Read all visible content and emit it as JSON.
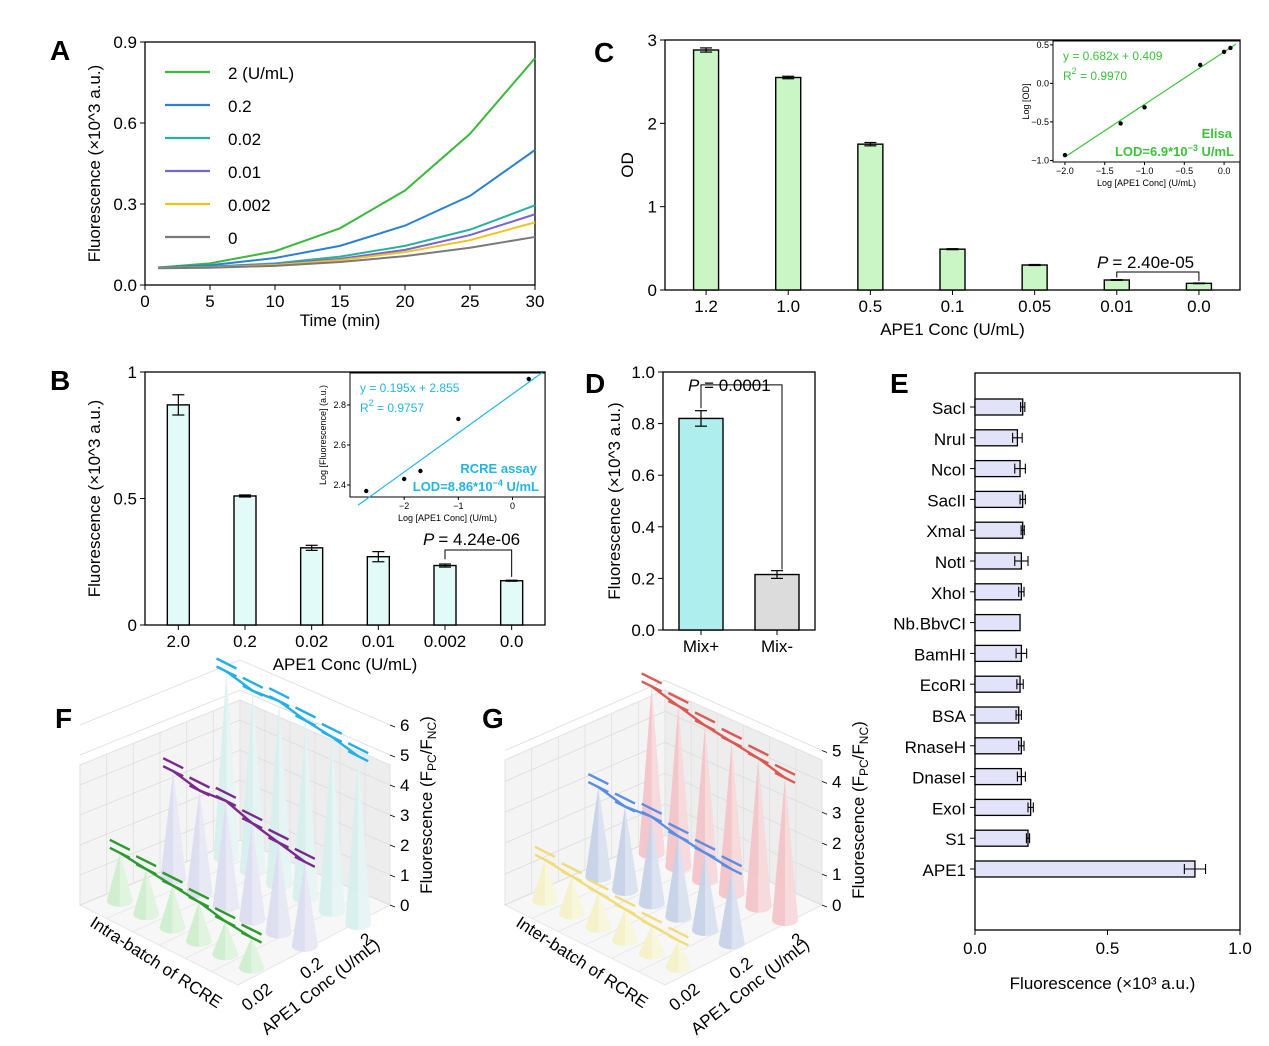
{
  "panels": {
    "A": "A",
    "B": "B",
    "C": "C",
    "D": "D",
    "E": "E",
    "F": "F",
    "G": "G"
  },
  "chart_data": [
    {
      "id": "A",
      "type": "line",
      "xlabel": "Time (min)",
      "ylabel": "Fluorescence (×10^3 a.u.)",
      "xlim": [
        0,
        30
      ],
      "ylim": [
        0,
        0.9
      ],
      "xticks": [
        "0",
        "5",
        "10",
        "15",
        "20",
        "25",
        "30"
      ],
      "yticks": [
        "0.0",
        "0.3",
        "0.6",
        "0.9"
      ],
      "legend_position": "top-left",
      "x": [
        1,
        5,
        10,
        15,
        20,
        25,
        30
      ],
      "series": [
        {
          "name": "2 (U/mL)",
          "color": "#3cb83c",
          "values": [
            0.065,
            0.08,
            0.125,
            0.21,
            0.35,
            0.56,
            0.84
          ]
        },
        {
          "name": "0.2",
          "color": "#2a7fd6",
          "values": [
            0.065,
            0.073,
            0.1,
            0.145,
            0.22,
            0.33,
            0.5
          ]
        },
        {
          "name": "0.02",
          "color": "#2ab0a2",
          "values": [
            0.063,
            0.068,
            0.08,
            0.105,
            0.145,
            0.205,
            0.295
          ]
        },
        {
          "name": "0.01",
          "color": "#7a65d0",
          "values": [
            0.063,
            0.066,
            0.077,
            0.097,
            0.13,
            0.185,
            0.262
          ]
        },
        {
          "name": "0.002",
          "color": "#f0c21e",
          "values": [
            0.063,
            0.065,
            0.074,
            0.092,
            0.122,
            0.166,
            0.232
          ]
        },
        {
          "name": "0",
          "color": "#7a7a7a",
          "values": [
            0.062,
            0.064,
            0.071,
            0.085,
            0.107,
            0.138,
            0.178
          ]
        }
      ]
    },
    {
      "id": "B",
      "type": "bar",
      "xlabel": "APE1 Conc (U/mL)",
      "ylabel": "Fluorescence (×10^3 a.u.)",
      "categories": [
        "2.0",
        "0.2",
        "0.02",
        "0.01",
        "0.002",
        "0.0"
      ],
      "values": [
        0.87,
        0.51,
        0.305,
        0.27,
        0.235,
        0.175
      ],
      "errors": [
        0.04,
        0.004,
        0.01,
        0.02,
        0.006,
        0.002
      ],
      "ylim": [
        0,
        1
      ],
      "yticks": [
        "0",
        "0.5",
        "1"
      ],
      "bar_color": "#e3fbf8",
      "annotation": {
        "p_label": "P",
        "p_value": "= 4.24e-06",
        "between": [
          "0.002",
          "0.0"
        ]
      },
      "inset": {
        "xlabel": "Log [APE1 Conc] (U/mL)",
        "ylabel": "Log [Fluorescence] (a.u.)",
        "xlim": [
          -3,
          0.6
        ],
        "ylim": [
          2.34,
          2.96
        ],
        "xticks": [
          "−2",
          "−1",
          "0"
        ],
        "yticks": [
          "2.4",
          "2.6",
          "2.8"
        ],
        "x": [
          -2.7,
          -2.0,
          -1.7,
          -1.0,
          0.3
        ],
        "y": [
          2.37,
          2.43,
          2.47,
          2.73,
          2.93
        ],
        "fit": {
          "slope": 0.195,
          "intercept": 2.855
        },
        "equation": "y = 0.195x + 2.855",
        "r2_prefix": "R",
        "r2_value": " = 0.9757",
        "assay": "RCRE assay",
        "lod_prefix": "LOD=8.86*10",
        "lod_exp": "−4",
        "lod_unit": " U/mL",
        "color": "#22b5e6"
      }
    },
    {
      "id": "C",
      "type": "bar",
      "xlabel": "APE1 Conc (U/mL)",
      "ylabel": "OD",
      "categories": [
        "1.2",
        "1.0",
        "0.5",
        "0.1",
        "0.05",
        "0.01",
        "0.0"
      ],
      "values": [
        2.88,
        2.55,
        1.75,
        0.49,
        0.3,
        0.12,
        0.08
      ],
      "errors": [
        0.025,
        0.015,
        0.02,
        0.006,
        0.006,
        0.004,
        0.004
      ],
      "ylim": [
        0,
        3
      ],
      "yticks": [
        "0",
        "1",
        "2",
        "3"
      ],
      "bar_color": "#c9f6c4",
      "annotation": {
        "p_label": "P",
        "p_value": "= 2.40e-05",
        "between": [
          "0.01",
          "0.0"
        ]
      },
      "inset": {
        "xlabel": "Log [APE1 Conc] (U/mL)",
        "ylabel": "Log [OD]",
        "xlim": [
          -2.15,
          0.2
        ],
        "ylim": [
          -1.02,
          0.55
        ],
        "xticks": [
          "−2.0",
          "−1.5",
          "−1.0",
          "−0.5",
          "0.0"
        ],
        "yticks": [
          "−1.0",
          "−0.5",
          "0.0",
          "0.5"
        ],
        "x": [
          -2.0,
          -1.3,
          -1.0,
          -0.3,
          0.0,
          0.08
        ],
        "y": [
          -0.93,
          -0.52,
          -0.31,
          0.24,
          0.41,
          0.46
        ],
        "fit": {
          "slope": 0.682,
          "intercept": 0.409
        },
        "equation": "y = 0.682x + 0.409",
        "r2_prefix": "R",
        "r2_value": " = 0.9970",
        "assay": "Elisa",
        "lod_prefix": "LOD=6.9*10",
        "lod_exp": "−3",
        "lod_unit": " U/mL",
        "color": "#3cc23c"
      }
    },
    {
      "id": "D",
      "type": "bar",
      "ylabel": "Fluorescence (×10^3 a.u.)",
      "categories": [
        "Mix+",
        "Mix-"
      ],
      "values": [
        0.82,
        0.215
      ],
      "errors": [
        0.03,
        0.015
      ],
      "colors": [
        "#aeeeed",
        "#dcdcdc"
      ],
      "ylim": [
        0,
        1.0
      ],
      "yticks": [
        "0.0",
        "0.2",
        "0.4",
        "0.6",
        "0.8",
        "1.0"
      ],
      "annotation": {
        "p_label": "P",
        "p_value": " = 0.0001"
      }
    },
    {
      "id": "E",
      "type": "bar",
      "orientation": "horizontal",
      "xlabel": "Fluorescence (×10³ a.u.)",
      "categories": [
        "SacI",
        "NruI",
        "NcoI",
        "SacII",
        "XmaI",
        "NotI",
        "XhoI",
        "Nb.BbvCI",
        "BamHI",
        "EcoRI",
        "BSA",
        "RnaseH",
        "DnaseI",
        "ExoI",
        "S1",
        "APE1"
      ],
      "values": [
        0.18,
        0.16,
        0.17,
        0.18,
        0.18,
        0.175,
        0.175,
        0.17,
        0.175,
        0.17,
        0.165,
        0.175,
        0.175,
        0.21,
        0.2,
        0.83
      ],
      "errors": [
        0.008,
        0.018,
        0.02,
        0.01,
        0.006,
        0.025,
        0.01,
        0.0,
        0.02,
        0.012,
        0.01,
        0.01,
        0.015,
        0.01,
        0.006,
        0.04
      ],
      "xlim": [
        0,
        1.0
      ],
      "xticks": [
        "0.0",
        "0.5",
        "1.0"
      ],
      "bar_color": "#e2e2f8"
    },
    {
      "id": "F",
      "type": "3d-cone",
      "zlabel_main": "Fluorescence (F",
      "zlabel_sub1": "PC",
      "zlabel_mid": "/F",
      "zlabel_sub2": "NC",
      "zlabel_end": ")",
      "xlabel": "APE1 Conc (U/mL)",
      "ylabel": "Intra-batch of RCRE",
      "xticks": [
        "0.02",
        "0.2",
        "2"
      ],
      "zticks": [
        "0",
        "1",
        "2",
        "3",
        "4",
        "5",
        "6"
      ],
      "zmax": 6,
      "rows": [
        {
          "color": "#2c9a2c",
          "fill": "#cfeecd",
          "values": [
            1.6,
            1.5,
            1.4,
            1.3,
            1.1,
            1.0
          ]
        },
        {
          "color": "#7b2a8c",
          "fill": "#dcdcf0",
          "values": [
            3.6,
            3.4,
            3.5,
            3.2,
            3.0,
            2.8
          ]
        },
        {
          "color": "#22b0e6",
          "fill": "#d8efee",
          "values": [
            6.2,
            6.0,
            6.1,
            5.9,
            5.8,
            5.6
          ]
        }
      ]
    },
    {
      "id": "G",
      "type": "3d-cone",
      "zlabel_main": "Fluorescence (F",
      "zlabel_sub1": "PC",
      "zlabel_mid": "/F",
      "zlabel_sub2": "NC",
      "zlabel_end": ")",
      "xlabel": "APE1 Conc (U/mL)",
      "ylabel": "Inter-batch of RCRE",
      "xticks": [
        "0.02",
        "0.2",
        "2"
      ],
      "zticks": [
        "0",
        "1",
        "2",
        "3",
        "4",
        "5"
      ],
      "zmax": 5.5,
      "rows": [
        {
          "color": "#f0dc78",
          "fill": "#f3f0c8",
          "values": [
            1.3,
            1.2,
            1.1,
            1.0,
            0.9,
            0.85
          ]
        },
        {
          "color": "#5a8ee6",
          "fill": "#c6d2e8",
          "values": [
            2.9,
            2.7,
            2.8,
            2.6,
            2.5,
            2.4
          ]
        },
        {
          "color": "#d85a52",
          "fill": "#f2c4c8",
          "values": [
            5.4,
            5.2,
            5.0,
            4.9,
            4.8,
            4.6
          ]
        }
      ]
    }
  ]
}
